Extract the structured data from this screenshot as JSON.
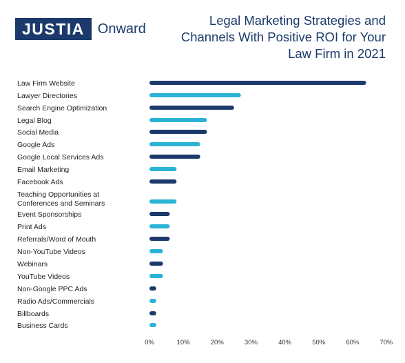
{
  "logo": {
    "brand": "JUSTIA",
    "suffix": "Onward"
  },
  "colors": {
    "navy": "#1b3a6b",
    "cyan": "#2bb3d6",
    "brand": "#1b3a6b"
  },
  "chart_data": {
    "type": "bar",
    "orientation": "horizontal",
    "title": "Legal Marketing Strategies and Channels With Positive ROI for Your Law Firm in 2021",
    "title_lines": [
      "Legal Marketing Strategies and",
      "Channels With Positive ROI for Your",
      "Law Firm in 2021"
    ],
    "categories": [
      "Law Firm Website",
      "Lawyer Directories",
      "Search Engine Optimization",
      "Legal Blog",
      "Social Media",
      "Google Ads",
      "Google Local Services Ads",
      "Email Marketing",
      "Facebook Ads",
      "Teaching Opportunities at Conferences and Seminars",
      "Event Sponsorships",
      "Print Ads",
      "Referrals/Word of Mouth",
      "Non-YouTube Videos",
      "Webinars",
      "YouTube Videos",
      "Non-Google PPC Ads",
      "Radio Ads/Commercials",
      "Billboards",
      "Business Cards"
    ],
    "values": [
      64,
      27,
      25,
      17,
      17,
      15,
      15,
      8,
      8,
      8,
      6,
      6,
      6,
      4,
      4,
      4,
      2,
      2,
      2,
      2
    ],
    "bar_colors": [
      "navy",
      "cyan",
      "navy",
      "cyan",
      "navy",
      "cyan",
      "navy",
      "cyan",
      "navy",
      "cyan",
      "navy",
      "cyan",
      "navy",
      "cyan",
      "navy",
      "cyan",
      "navy",
      "cyan",
      "navy",
      "cyan"
    ],
    "xlim": [
      0,
      70
    ],
    "xticks": [
      0,
      10,
      20,
      30,
      40,
      50,
      60,
      70
    ],
    "xtick_labels": [
      "0%",
      "10%",
      "20%",
      "30%",
      "40%",
      "50%",
      "60%",
      "70%"
    ],
    "grid": false,
    "legend": "none"
  }
}
